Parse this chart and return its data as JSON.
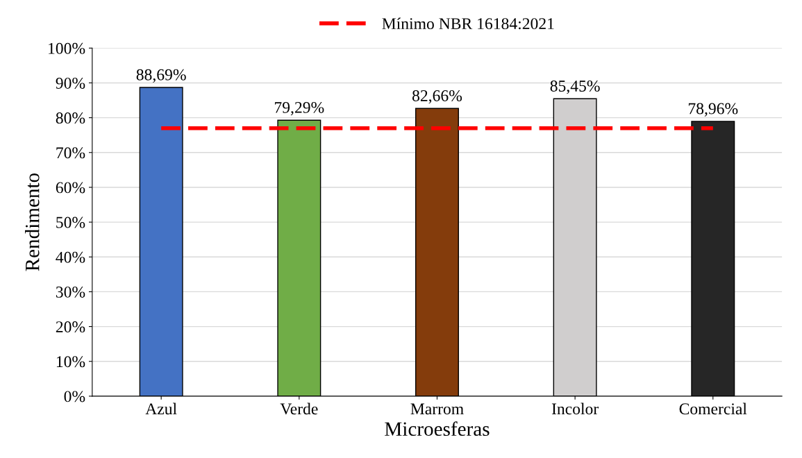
{
  "chart_data": {
    "type": "bar",
    "xlabel": "Microesferas",
    "ylabel": "Rendimento",
    "categories": [
      "Azul",
      "Verde",
      "Marrom",
      "Incolor",
      "Comercial"
    ],
    "series": [
      {
        "colors": [
          "#4472c4",
          "#70ad47",
          "#843c0c",
          "#d0cece",
          "#262626"
        ],
        "values": [
          88.69,
          79.29,
          82.66,
          85.45,
          78.96
        ],
        "value_labels": [
          "88,69%",
          "79,29%",
          "82,66%",
          "85,45%",
          "78,96%"
        ]
      },
      {
        "type": "line",
        "name": "Mínimo NBR 16184:2021",
        "color": "#ff0000",
        "line_style": "dashed",
        "marker": "none",
        "values": [
          77,
          77,
          77,
          77,
          77
        ]
      }
    ],
    "ylim": [
      0,
      100
    ],
    "yticks": [
      {
        "value": 0,
        "label": "0%"
      },
      {
        "value": 10,
        "label": "10%"
      },
      {
        "value": 20,
        "label": "20%"
      },
      {
        "value": 30,
        "label": "30%"
      },
      {
        "value": 40,
        "label": "40%"
      },
      {
        "value": 50,
        "label": "50%"
      },
      {
        "value": 60,
        "label": "60%"
      },
      {
        "value": 70,
        "label": "70%"
      },
      {
        "value": 80,
        "label": "80%"
      },
      {
        "value": 90,
        "label": "90%"
      },
      {
        "value": 100,
        "label": "100%"
      }
    ],
    "grid": "y",
    "legend": "top"
  }
}
